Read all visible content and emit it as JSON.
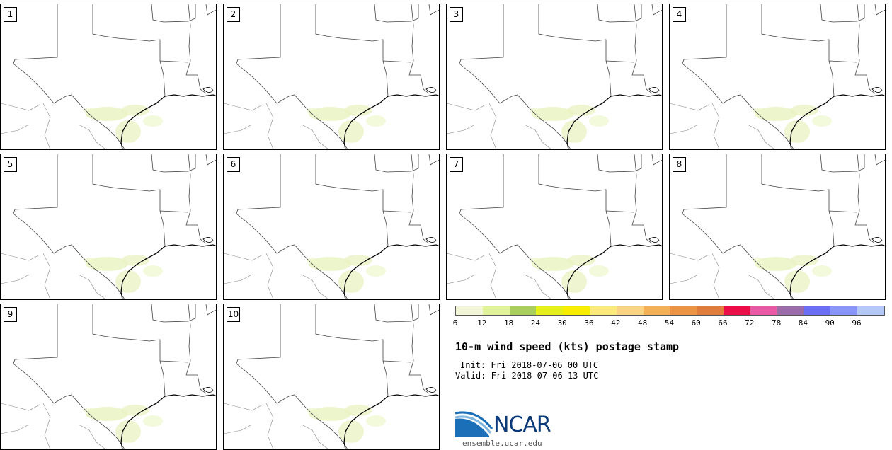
{
  "panels": [
    {
      "label": "1"
    },
    {
      "label": "2"
    },
    {
      "label": "3"
    },
    {
      "label": "4"
    },
    {
      "label": "5"
    },
    {
      "label": "6"
    },
    {
      "label": "7"
    },
    {
      "label": "8"
    },
    {
      "label": "9"
    },
    {
      "label": "10"
    }
  ],
  "colorbar": {
    "colors": [
      "#f2f5d6",
      "#e0f29a",
      "#a8cf5e",
      "#e4ef1c",
      "#f6ed00",
      "#fbe97b",
      "#f8d383",
      "#f2b157",
      "#eb9443",
      "#e07d3d",
      "#ec0c46",
      "#e65aa6",
      "#9b6ca8",
      "#6a6ef0",
      "#8796f8",
      "#b4c8f6"
    ],
    "ticks": [
      "6",
      "12",
      "18",
      "24",
      "30",
      "36",
      "42",
      "48",
      "54",
      "60",
      "66",
      "72",
      "78",
      "84",
      "90",
      "96"
    ]
  },
  "title": "10-m wind speed (kts) postage stamp",
  "init": "Init: Fri 2018-07-06 00 UTC",
  "valid": "Valid: Fri 2018-07-06 13 UTC",
  "logo": {
    "name": "NCAR",
    "url": "ensemble.ucar.edu"
  }
}
